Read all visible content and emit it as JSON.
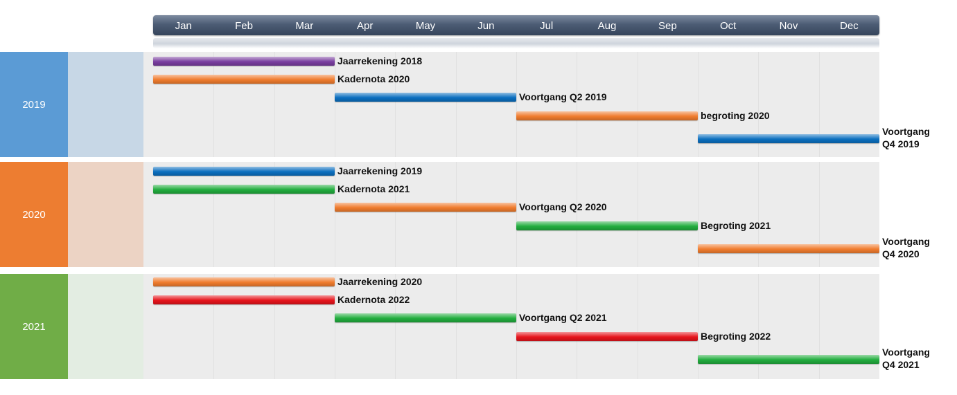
{
  "months": [
    "Jan",
    "Feb",
    "Mar",
    "Apr",
    "May",
    "Jun",
    "Jul",
    "Aug",
    "Sep",
    "Oct",
    "Nov",
    "Dec"
  ],
  "colors": {
    "purple": "#7a3fa0",
    "orange": "#f07c2e",
    "blue": "#0b6fbf",
    "green": "#22ad3e",
    "red": "#e6141c"
  },
  "chart_data": {
    "type": "gantt",
    "x_axis": "months",
    "groups": [
      {
        "year": "2019",
        "color": "#5b9bd5",
        "light_color": "#c7d7e6",
        "tasks": [
          {
            "label": "Jaarrekening 2018",
            "start": "Jan",
            "end": "Mar",
            "color": "purple"
          },
          {
            "label": "Kadernota 2020",
            "start": "Jan",
            "end": "Mar",
            "color": "orange"
          },
          {
            "label": "Voortgang Q2 2019",
            "start": "Apr",
            "end": "Jun",
            "color": "blue"
          },
          {
            "label": "begroting 2020",
            "start": "Jul",
            "end": "Sep",
            "color": "orange"
          },
          {
            "label": "Voortgang Q4 2019",
            "start": "Oct",
            "end": "Dec",
            "color": "blue"
          }
        ]
      },
      {
        "year": "2020",
        "color": "#ed7d31",
        "light_color": "#ecd3c4",
        "tasks": [
          {
            "label": "Jaarrekening 2019",
            "start": "Jan",
            "end": "Mar",
            "color": "blue"
          },
          {
            "label": "Kadernota 2021",
            "start": "Jan",
            "end": "Mar",
            "color": "green"
          },
          {
            "label": "Voortgang Q2 2020",
            "start": "Apr",
            "end": "Jun",
            "color": "orange"
          },
          {
            "label": "Begroting 2021",
            "start": "Jul",
            "end": "Sep",
            "color": "green"
          },
          {
            "label": "Voortgang Q4 2020",
            "start": "Oct",
            "end": "Dec",
            "color": "orange"
          }
        ]
      },
      {
        "year": "2021",
        "color": "#70ad47",
        "light_color": "#e3ede2",
        "tasks": [
          {
            "label": "Jaarrekening 2020",
            "start": "Jan",
            "end": "Mar",
            "color": "orange"
          },
          {
            "label": "Kadernota 2022",
            "start": "Jan",
            "end": "Mar",
            "color": "red"
          },
          {
            "label": "Voortgang Q2 2021",
            "start": "Apr",
            "end": "Jun",
            "color": "green"
          },
          {
            "label": "Begroting 2022",
            "start": "Jul",
            "end": "Sep",
            "color": "red"
          },
          {
            "label": "Voortgang Q4 2021",
            "start": "Oct",
            "end": "Dec",
            "color": "green"
          }
        ]
      }
    ]
  }
}
